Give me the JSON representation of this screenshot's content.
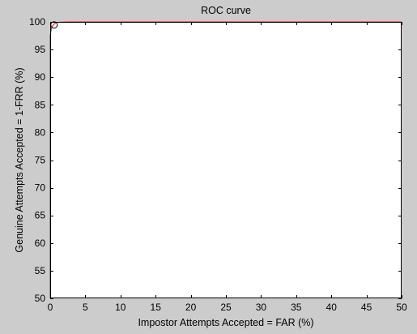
{
  "chart_data": {
    "type": "line",
    "title": "ROC curve",
    "xlabel": "Impostor Attempts Accepted = FAR (%)",
    "ylabel": "Genuine Attempts Accepted = 1-FRR (%)",
    "xlim": [
      0,
      50
    ],
    "ylim": [
      50,
      100
    ],
    "xticks": [
      0,
      5,
      10,
      15,
      20,
      25,
      30,
      35,
      40,
      45,
      50
    ],
    "yticks": [
      50,
      55,
      60,
      65,
      70,
      75,
      80,
      85,
      90,
      95,
      100
    ],
    "grid": false,
    "legend": "none",
    "series": [
      {
        "x": [
          0,
          0,
          0.1,
          0.2,
          0.35,
          0.5,
          0.7,
          1.0,
          1.5,
          2.5,
          5,
          10,
          20,
          30,
          40,
          50
        ],
        "y": [
          50,
          97.5,
          98.3,
          98.9,
          99.3,
          99.55,
          99.75,
          99.9,
          99.97,
          100,
          100,
          100,
          100,
          100,
          100,
          100
        ],
        "color": "#ff0000"
      }
    ],
    "marker": {
      "x": 0.55,
      "y": 99.45,
      "shape": "circle"
    },
    "colors": {
      "figure_background": "#cccccc",
      "plot_background": "#ffffff",
      "axes": "#000000",
      "curve": "#ff0000",
      "marker": "#000000"
    }
  }
}
